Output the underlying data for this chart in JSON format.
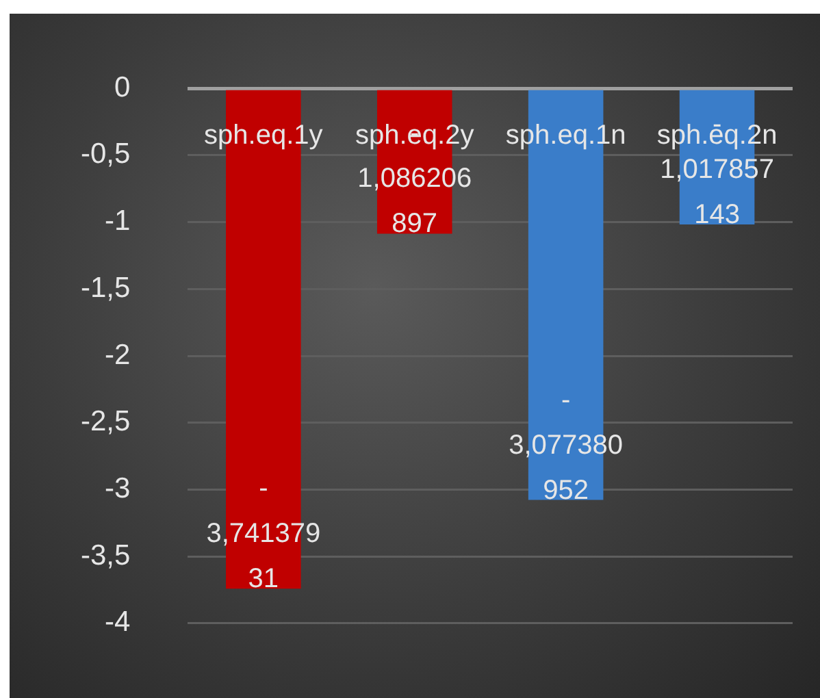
{
  "chart_data": {
    "type": "bar",
    "categories": [
      "sph.eq.1y",
      "sph.eq.2y",
      "sph.eq.1n",
      "sph.eq.2n"
    ],
    "values": [
      -3.74137931,
      -1.086206897,
      -3.077380952,
      -1.017857143
    ],
    "value_labels": [
      "-3,74137931",
      "-1,086206897",
      "-3,077380952",
      "-1,017857143"
    ],
    "colors": [
      "#c00000",
      "#c00000",
      "#3a7dc9",
      "#3a7dc9"
    ],
    "ylim": [
      -4,
      0
    ],
    "yticks": [
      {
        "value": 0,
        "label": "0"
      },
      {
        "value": -0.5,
        "label": "-0,5"
      },
      {
        "value": -1,
        "label": "-1"
      },
      {
        "value": -1.5,
        "label": "-1,5"
      },
      {
        "value": -2,
        "label": "-2"
      },
      {
        "value": -2.5,
        "label": "-2,5"
      },
      {
        "value": -3,
        "label": "-3"
      },
      {
        "value": -3.5,
        "label": "-3,5"
      },
      {
        "value": -4,
        "label": "-4"
      }
    ],
    "grid": "y",
    "legend": false
  }
}
